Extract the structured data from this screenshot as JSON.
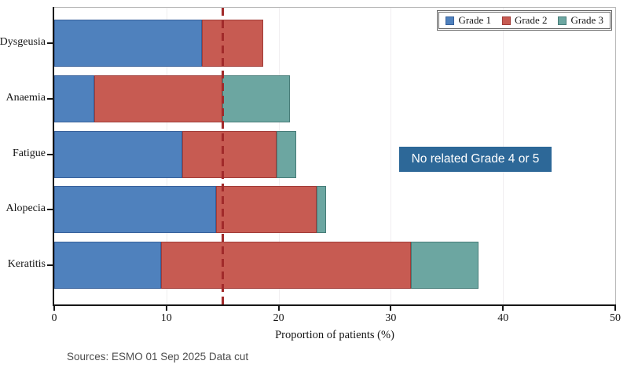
{
  "chart_data": {
    "type": "bar",
    "orientation": "horizontal",
    "title": "",
    "xlabel": "Proportion of patients (%)",
    "xlim": [
      0,
      50
    ],
    "xticks": [
      0,
      10,
      20,
      30,
      40,
      50
    ],
    "gridlines": true,
    "categories": [
      "Dysgeusia",
      "Anaemia",
      "Fatigue",
      "Alopecia",
      "Keratitis"
    ],
    "series": [
      {
        "name": "Grade 1",
        "color": "#4f81bd",
        "border_color": "#38619b",
        "values": [
          13.2,
          3.6,
          11.4,
          14.4,
          9.5
        ]
      },
      {
        "name": "Grade 2",
        "color": "#c75b52",
        "border_color": "#a13c38",
        "values": [
          5.4,
          11.4,
          8.4,
          9.0,
          22.3
        ]
      },
      {
        "name": "Grade 3",
        "color": "#6ca6a1",
        "border_color": "#477c78",
        "values": [
          0,
          6.0,
          1.8,
          0.8,
          6.0
        ]
      }
    ],
    "reference_line": {
      "value": 15,
      "color": "#a12a2a",
      "style": "dashed"
    },
    "legend": {
      "position": "top-right",
      "entries": [
        "Grade 1",
        "Grade 2",
        "Grade 3"
      ]
    }
  },
  "annotation": {
    "text": "No related Grade 4 or 5",
    "bg_color": "#2d6898",
    "text_color": "#ffffff"
  },
  "source_note": "Sources: ESMO 01 Sep 2025 Data cut",
  "colors": {
    "axis": "#161616",
    "grid": "#f0eef0",
    "frame": "#b9b9b9"
  }
}
